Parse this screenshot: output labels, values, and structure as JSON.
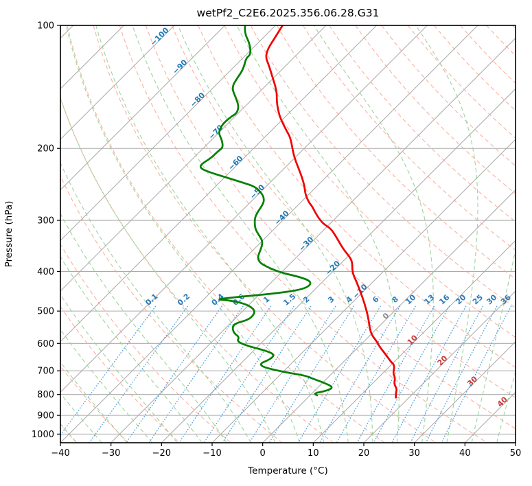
{
  "chart_data": {
    "type": "skewt_log_p",
    "title": "wetPf2_C2E6.2025.356.06.28.G31",
    "xlabel": "Temperature (°C)",
    "ylabel": "Pressure (hPa)",
    "xlim": [
      -40,
      50
    ],
    "plim": [
      100,
      1050
    ],
    "skew_deg": 45,
    "x_ticks": [
      -40,
      -30,
      -20,
      -10,
      0,
      10,
      20,
      30,
      40,
      50
    ],
    "y_ticks": [
      100,
      200,
      300,
      400,
      500,
      600,
      700,
      800,
      900,
      1000
    ],
    "isotherms": {
      "start_c": -160,
      "end_c": 50,
      "step_c": 10,
      "labeled_values_c": [
        -100,
        -90,
        -80,
        -70,
        -60,
        -50,
        -40,
        -30,
        -20,
        -10,
        0,
        10,
        20,
        30,
        40
      ]
    },
    "dry_adiabats": {
      "theta_start_c": -60,
      "theta_end_c": 250,
      "step_c": 10
    },
    "moist_adiabats": {
      "t0_start_c": -40,
      "t0_end_c": 45,
      "step_c": 5,
      "ref_pressure_hpa": 1000
    },
    "mixing_ratio_lines": {
      "values_g_kg": [
        0.1,
        0.2,
        0.4,
        0.6,
        1,
        1.5,
        2,
        3,
        4,
        6,
        8,
        10,
        13,
        16,
        20,
        25,
        30,
        36
      ]
    },
    "series": [
      {
        "name": "temperature",
        "units": "degC vs hPa",
        "points_p_t": [
          [
            100,
            -78.6
          ],
          [
            107,
            -77.7
          ],
          [
            114,
            -76.9
          ],
          [
            119.5,
            -75.7
          ],
          [
            125,
            -73.5
          ],
          [
            134,
            -70.3
          ],
          [
            145,
            -66.7
          ],
          [
            154,
            -64.6
          ],
          [
            162,
            -62.5
          ],
          [
            169,
            -60.6
          ],
          [
            181,
            -57.0
          ],
          [
            188,
            -54.9
          ],
          [
            203,
            -51.7
          ],
          [
            212,
            -49.8
          ],
          [
            225,
            -46.9
          ],
          [
            235,
            -44.8
          ],
          [
            246,
            -42.7
          ],
          [
            259,
            -40.7
          ],
          [
            271,
            -38.4
          ],
          [
            277,
            -37.0
          ],
          [
            293,
            -34.0
          ],
          [
            306,
            -31.3
          ],
          [
            314,
            -28.9
          ],
          [
            329,
            -26.2
          ],
          [
            345,
            -23.6
          ],
          [
            358,
            -21.4
          ],
          [
            376,
            -18.3
          ],
          [
            402,
            -16.0
          ],
          [
            422,
            -13.5
          ],
          [
            447,
            -10.7
          ],
          [
            479,
            -7.4
          ],
          [
            517,
            -4.0
          ],
          [
            566,
            -0.4
          ],
          [
            594,
            2.6
          ],
          [
            610,
            4.0
          ],
          [
            641,
            7.1
          ],
          [
            666,
            9.4
          ],
          [
            679,
            10.8
          ],
          [
            711,
            12.1
          ],
          [
            727,
            13.3
          ],
          [
            755,
            14.4
          ],
          [
            775,
            15.9
          ],
          [
            796,
            16.6
          ],
          [
            814,
            17.4
          ]
        ]
      },
      {
        "name": "dewpoint",
        "units": "degC vs hPa",
        "points_p_t": [
          [
            100,
            -86.0
          ],
          [
            104,
            -84.8
          ],
          [
            111,
            -81.4
          ],
          [
            118,
            -79.1
          ],
          [
            120,
            -79.4
          ],
          [
            128,
            -77.7
          ],
          [
            134,
            -77.2
          ],
          [
            142,
            -76.4
          ],
          [
            151,
            -73.3
          ],
          [
            158,
            -71.2
          ],
          [
            164,
            -70.3
          ],
          [
            167,
            -70.7
          ],
          [
            174,
            -71.0
          ],
          [
            183,
            -70.1
          ],
          [
            190,
            -68.1
          ],
          [
            199,
            -66.2
          ],
          [
            203,
            -66.5
          ],
          [
            211,
            -66.5
          ],
          [
            219,
            -67.3
          ],
          [
            224,
            -66.5
          ],
          [
            228,
            -64.4
          ],
          [
            232,
            -61.9
          ],
          [
            237,
            -58.7
          ],
          [
            242,
            -55.7
          ],
          [
            248,
            -52.1
          ],
          [
            258,
            -49.4
          ],
          [
            266,
            -47.9
          ],
          [
            274,
            -47.1
          ],
          [
            289,
            -46.5
          ],
          [
            298,
            -45.8
          ],
          [
            314,
            -43.9
          ],
          [
            326,
            -41.8
          ],
          [
            337,
            -39.9
          ],
          [
            350,
            -38.8
          ],
          [
            368,
            -37.8
          ],
          [
            378,
            -36.6
          ],
          [
            386,
            -35.0
          ],
          [
            402,
            -30.4
          ],
          [
            414,
            -24.8
          ],
          [
            426,
            -21.8
          ],
          [
            442,
            -22.1
          ],
          [
            453,
            -27.1
          ],
          [
            461,
            -33.2
          ],
          [
            468,
            -37.7
          ],
          [
            470,
            -35.2
          ],
          [
            479,
            -31.2
          ],
          [
            492,
            -28.5
          ],
          [
            505,
            -27.2
          ],
          [
            524,
            -27.0
          ],
          [
            536,
            -29.0
          ],
          [
            547,
            -28.9
          ],
          [
            566,
            -27.4
          ],
          [
            579,
            -25.5
          ],
          [
            594,
            -25.1
          ],
          [
            610,
            -21.8
          ],
          [
            622,
            -18.4
          ],
          [
            637,
            -15.2
          ],
          [
            654,
            -14.9
          ],
          [
            679,
            -16.6
          ],
          [
            705,
            -9.9
          ],
          [
            718,
            -5.1
          ],
          [
            732,
            -2.7
          ],
          [
            751,
            0.6
          ],
          [
            768,
            3.0
          ],
          [
            783,
            2.5
          ],
          [
            795,
            0.3
          ],
          [
            804,
            1.4
          ]
        ]
      }
    ],
    "colors": {
      "temperature_line": "#f00000",
      "dewpoint_line": "#008000",
      "isotherm_grid": "#ababab",
      "isobar_grid": "#ababab",
      "dry_adiabat": "#faa08c",
      "moist_adiabat": "#8ecf8e",
      "mixing_ratio": "#4a9ede",
      "label_negative": "#2079b4",
      "label_zero": "#8c8c8c",
      "label_positive": "#c33d3d",
      "mixing_label": "#2b7bba",
      "spine": "#000000"
    },
    "grid": true,
    "legend": "none"
  }
}
